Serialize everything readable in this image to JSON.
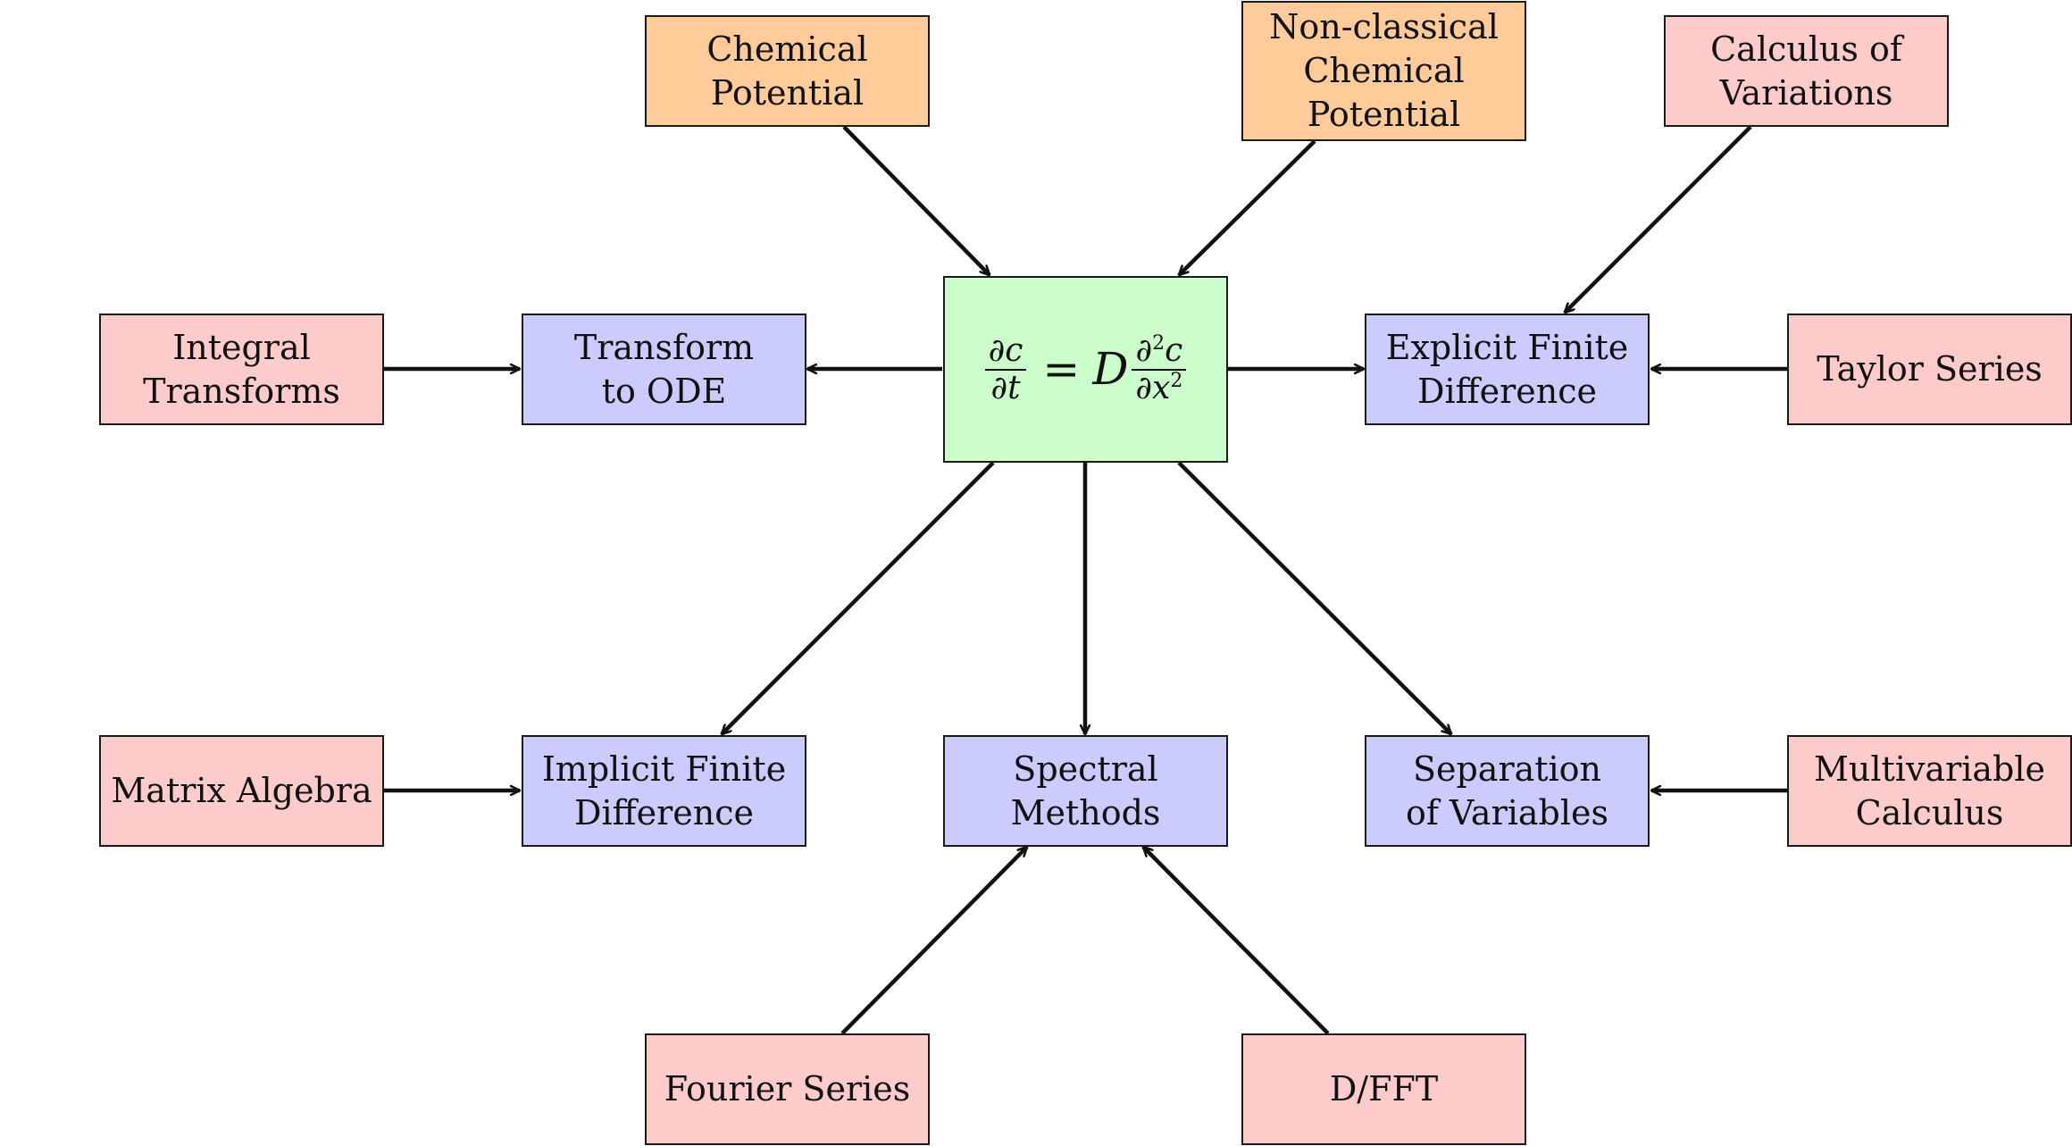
{
  "nodes": {
    "chem_pot": {
      "label": "Chemical\nPotential",
      "color": "#fecb99"
    },
    "nonclassical": {
      "label": "Non-classical\nChemical\nPotential",
      "color": "#fecb99"
    },
    "calc_var": {
      "label": "Calculus of\nVariations",
      "color": "#fecbcb"
    },
    "integral": {
      "label": "Integral\nTransforms",
      "color": "#fecbcb"
    },
    "transform_ode": {
      "label": "Transform\nto ODE",
      "color": "#cbcbfe"
    },
    "equation": {
      "color": "#cbfecb",
      "lhs_num": "∂c",
      "lhs_den": "∂t",
      "equals": "=",
      "coef": "D",
      "rhs_num_a": "∂",
      "rhs_num_sup": "2",
      "rhs_num_b": "c",
      "rhs_den_a": "∂x",
      "rhs_den_sup": "2"
    },
    "explicit": {
      "label": "Explicit Finite\nDifference",
      "color": "#cbcbfe"
    },
    "taylor": {
      "label": "Taylor Series",
      "color": "#fecbcb"
    },
    "matrix": {
      "label": "Matrix Algebra",
      "color": "#fecbcb"
    },
    "implicit": {
      "label": "Implicit Finite\nDifference",
      "color": "#cbcbfe"
    },
    "spectral": {
      "label": "Spectral\nMethods",
      "color": "#cbcbfe"
    },
    "separation": {
      "label": "Separation\nof Variables",
      "color": "#cbcbfe"
    },
    "multivar": {
      "label": "Multivariable\nCalculus",
      "color": "#fecbcb"
    },
    "fourier": {
      "label": "Fourier Series",
      "color": "#fecbcb"
    },
    "dfft": {
      "label": "D/FFT",
      "color": "#fecbcb"
    }
  },
  "edges": [
    {
      "from": "chem_pot",
      "to": "equation"
    },
    {
      "from": "nonclassical",
      "to": "equation"
    },
    {
      "from": "calc_var",
      "to": "explicit"
    },
    {
      "from": "integral",
      "to": "transform_ode"
    },
    {
      "from": "equation",
      "to": "transform_ode"
    },
    {
      "from": "equation",
      "to": "explicit"
    },
    {
      "from": "taylor",
      "to": "explicit"
    },
    {
      "from": "equation",
      "to": "implicit"
    },
    {
      "from": "equation",
      "to": "spectral"
    },
    {
      "from": "equation",
      "to": "separation"
    },
    {
      "from": "matrix",
      "to": "implicit"
    },
    {
      "from": "multivar",
      "to": "separation"
    },
    {
      "from": "fourier",
      "to": "spectral"
    },
    {
      "from": "dfft",
      "to": "spectral"
    }
  ]
}
